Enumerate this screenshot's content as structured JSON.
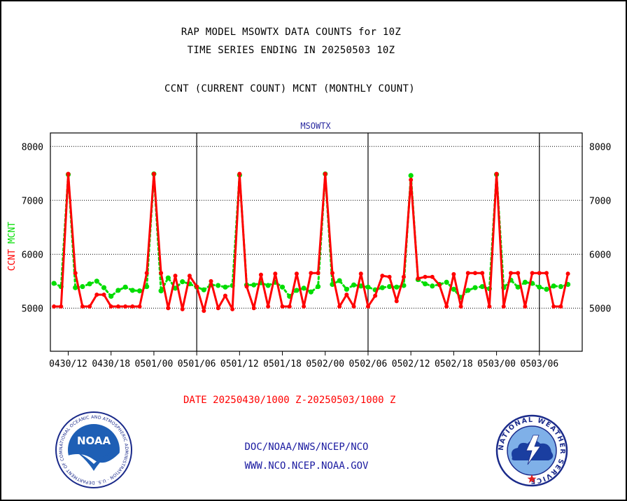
{
  "titles": {
    "line1": "RAP MODEL MSOWTX DATA COUNTS for 10Z",
    "line2": "TIME SERIES ENDING IN 20250503 10Z",
    "line3": "CCNT (CURRENT COUNT) MCNT (MONTHLY COUNT)"
  },
  "footer": {
    "date_range": "DATE 20250430/1000 Z-20250503/1000 Z",
    "credit1": "DOC/NOAA/NWS/NCEP/NCO",
    "credit2": "WWW.NCO.NCEP.NOAA.GOV"
  },
  "logos": {
    "noaa_text": "NOAA",
    "noaa_ring": "NATIONAL OCEANIC AND ATMOSPHERIC ADMINISTRATION · U.S. DEPARTMENT OF COMMERCE",
    "nws_ring": "NATIONAL WEATHER SERVICE"
  },
  "colors": {
    "ccnt": "#ff0000",
    "mcnt": "#00dd00",
    "axis": "#000000",
    "subtitle": "#2a2aa0"
  },
  "chart_data": {
    "type": "line",
    "title": "MSOWTX",
    "ylabel_parts": [
      {
        "text": "CCNT",
        "color": "#ff0000"
      },
      {
        "text": "MCNT",
        "color": "#00dd00"
      }
    ],
    "x_start_hour": 0,
    "x_end_hour": 72,
    "x_unit": "hours after 20250430/1000 Z (hourly)",
    "xlim": [
      -0.5,
      74
    ],
    "xticks": [
      {
        "h": 2,
        "label": "0430/12"
      },
      {
        "h": 8,
        "label": "0430/18"
      },
      {
        "h": 14,
        "label": "0501/00"
      },
      {
        "h": 20,
        "label": "0501/06"
      },
      {
        "h": 26,
        "label": "0501/12"
      },
      {
        "h": 32,
        "label": "0501/18"
      },
      {
        "h": 38,
        "label": "0502/00"
      },
      {
        "h": 44,
        "label": "0502/06"
      },
      {
        "h": 50,
        "label": "0502/12"
      },
      {
        "h": 56,
        "label": "0502/18"
      },
      {
        "h": 62,
        "label": "0503/00"
      },
      {
        "h": 68,
        "label": "0503/06"
      }
    ],
    "day_boundaries_h": [
      20,
      44,
      68
    ],
    "ylim": [
      4200,
      8250
    ],
    "yticks": [
      5000,
      6000,
      7000,
      8000
    ],
    "ytick_labels": [
      "5000",
      "6000",
      "7000",
      "8000"
    ],
    "series": [
      {
        "name": "CCNT",
        "color": "#ff0000",
        "values": [
          5030,
          5030,
          7490,
          5650,
          5030,
          5030,
          5250,
          5250,
          5030,
          5030,
          5030,
          5030,
          5030,
          5650,
          7490,
          5650,
          5000,
          5600,
          4980,
          5600,
          5400,
          4950,
          5500,
          5000,
          5230,
          4980,
          7490,
          5400,
          5000,
          5620,
          5030,
          5640,
          5030,
          5030,
          5640,
          5030,
          5650,
          5650,
          7490,
          5650,
          5030,
          5250,
          5030,
          5640,
          5030,
          5230,
          5600,
          5580,
          5130,
          5580,
          7380,
          5550,
          5580,
          5580,
          5430,
          5030,
          5630,
          5030,
          5650,
          5650,
          5650,
          5030,
          7490,
          5030,
          5650,
          5650,
          5030,
          5650,
          5650,
          5650,
          5030,
          5030,
          5640
        ]
      },
      {
        "name": "MCNT",
        "color": "#00dd00",
        "values": [
          5460,
          5400,
          7480,
          5380,
          5400,
          5450,
          5500,
          5380,
          5220,
          5330,
          5390,
          5330,
          5320,
          5400,
          7490,
          5320,
          5560,
          5370,
          5490,
          5450,
          5390,
          5340,
          5430,
          5420,
          5390,
          5420,
          7470,
          5430,
          5430,
          5470,
          5420,
          5480,
          5390,
          5220,
          5330,
          5370,
          5300,
          5400,
          7490,
          5440,
          5510,
          5350,
          5430,
          5410,
          5390,
          5340,
          5380,
          5400,
          5390,
          5420,
          7460,
          5530,
          5450,
          5410,
          5440,
          5480,
          5350,
          5200,
          5330,
          5380,
          5400,
          5360,
          7480,
          5380,
          5520,
          5390,
          5480,
          5460,
          5390,
          5350,
          5410,
          5400,
          5440
        ]
      }
    ]
  }
}
